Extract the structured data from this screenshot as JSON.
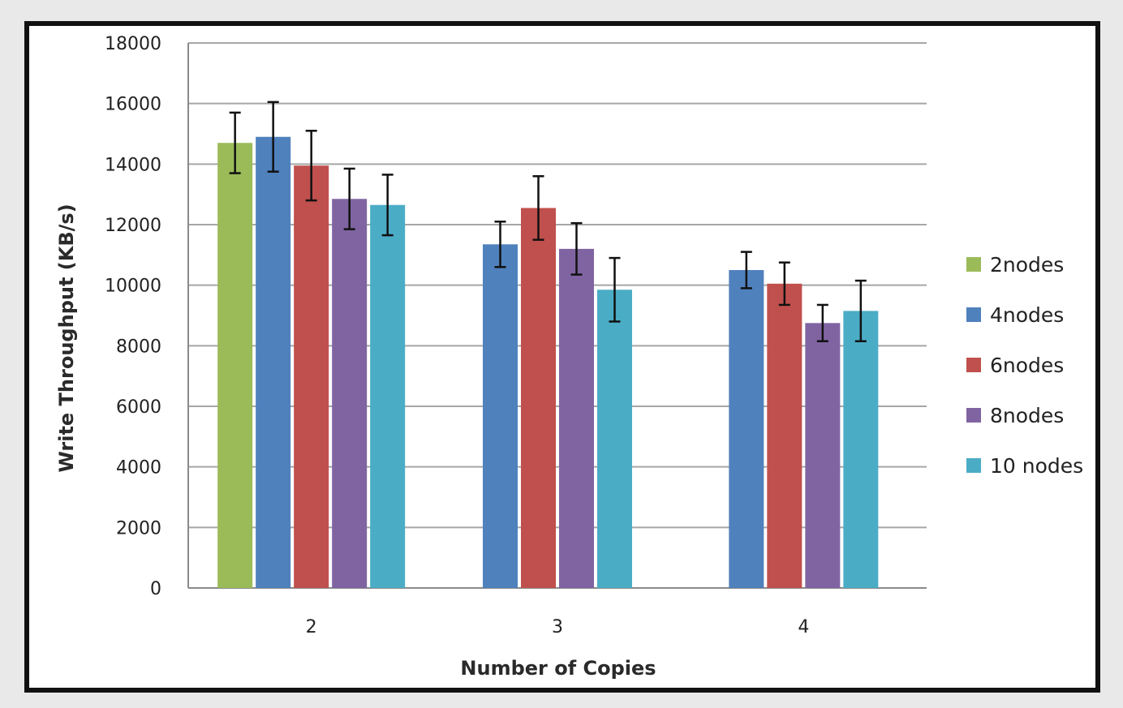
{
  "chart_data": {
    "type": "bar",
    "xlabel": "Number of Copies",
    "ylabel": "Write Throughput (KB/s)",
    "ylim": [
      0,
      18000
    ],
    "yticks": [
      0,
      2000,
      4000,
      6000,
      8000,
      10000,
      12000,
      14000,
      16000,
      18000
    ],
    "grid": true,
    "legend_position": "right",
    "categories": [
      "2",
      "3",
      "4"
    ],
    "series": [
      {
        "name": "2nodes",
        "color": "#9bbb59",
        "values": [
          14700,
          null,
          null
        ],
        "error": [
          1000,
          null,
          null
        ]
      },
      {
        "name": "4nodes",
        "color": "#4f81bd",
        "values": [
          14900,
          11350,
          10500
        ],
        "error": [
          1150,
          750,
          600
        ]
      },
      {
        "name": "6nodes",
        "color": "#c0504d",
        "values": [
          13950,
          12550,
          10050
        ],
        "error": [
          1150,
          1050,
          700
        ]
      },
      {
        "name": "8nodes",
        "color": "#8064a2",
        "values": [
          12850,
          11200,
          8750
        ],
        "error": [
          1000,
          850,
          600
        ]
      },
      {
        "name": "10 nodes",
        "color": "#4bacc6",
        "values": [
          12650,
          9850,
          9150
        ],
        "error": [
          1000,
          1050,
          1000
        ]
      }
    ]
  }
}
